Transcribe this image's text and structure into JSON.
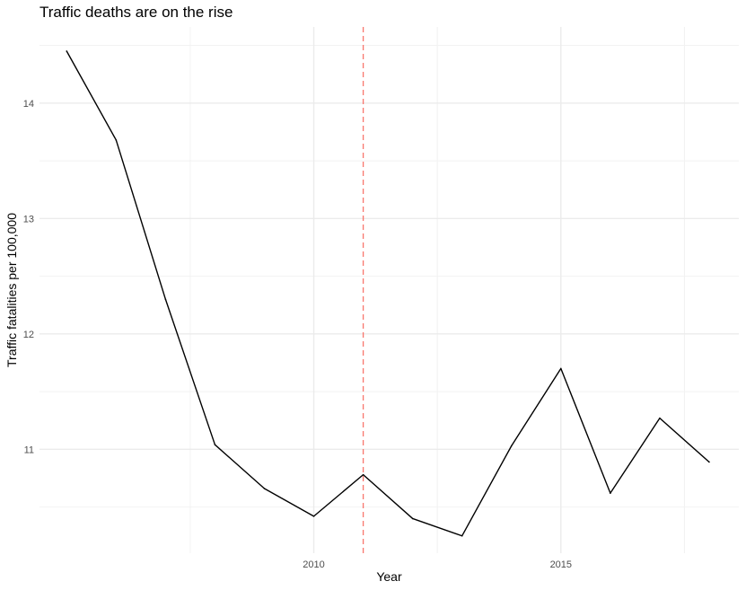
{
  "chart_data": {
    "type": "line",
    "title": "Traffic deaths are on the rise",
    "xlabel": "Year",
    "ylabel": "Traffic fatalities per 100,000",
    "x": [
      2005,
      2006,
      2007,
      2008,
      2009,
      2010,
      2011,
      2012,
      2013,
      2014,
      2015,
      2016,
      2017,
      2018
    ],
    "series": [
      {
        "values": [
          14.45,
          13.68,
          12.3,
          11.04,
          10.66,
          10.42,
          10.78,
          10.4,
          10.25,
          11.03,
          11.7,
          10.62,
          11.27,
          10.89
        ]
      }
    ],
    "xlim": [
      2004.45,
      2018.6
    ],
    "ylim": [
      10.1,
      14.66
    ],
    "x_major_ticks": [
      2010,
      2015
    ],
    "x_minor_ticks": [
      2007.5,
      2012.5,
      2017.5
    ],
    "y_major_ticks": [
      11,
      12,
      13,
      14
    ],
    "y_minor_ticks": [
      10.5,
      11.5,
      12.5,
      13.5,
      14.5
    ],
    "vline": {
      "x": 2011,
      "color": "#f8766d",
      "style": "dashed"
    },
    "line_color": "#000000",
    "grid": true,
    "colors": {
      "major_grid": "#ebebeb",
      "minor_grid": "#f2f2f2",
      "tick_text": "#4d4d4d"
    }
  }
}
